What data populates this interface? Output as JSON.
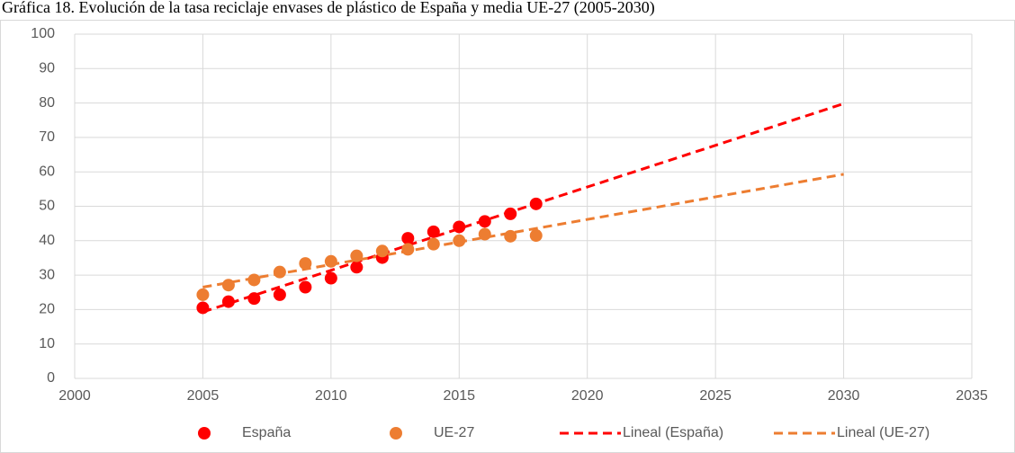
{
  "chart_data": {
    "type": "scatter",
    "title": "Gráfica 18. Evolución de la tasa reciclaje envases de plástico de España y media UE-27 (2005-2030)",
    "xlim": [
      2000,
      2035
    ],
    "xticks": [
      2000,
      2005,
      2010,
      2015,
      2020,
      2025,
      2030,
      2035
    ],
    "ylim": [
      0,
      100
    ],
    "yticks": [
      0,
      10,
      20,
      30,
      40,
      50,
      60,
      70,
      80,
      90,
      100
    ],
    "grid": true,
    "legend": "bottom",
    "series": [
      {
        "name": "España",
        "color": "#ff0000",
        "style": "marker",
        "x": [
          2005,
          2006,
          2007,
          2008,
          2009,
          2010,
          2011,
          2012,
          2013,
          2014,
          2015,
          2016,
          2017,
          2018
        ],
        "values": [
          20.5,
          22.3,
          23.2,
          24.3,
          26.5,
          29.1,
          32.3,
          35.1,
          40.7,
          42.6,
          44,
          45.6,
          47.8,
          50.7
        ]
      },
      {
        "name": "UE-27",
        "color": "#ed7d31",
        "style": "marker",
        "x": [
          2005,
          2006,
          2007,
          2008,
          2009,
          2010,
          2011,
          2012,
          2013,
          2014,
          2015,
          2016,
          2017,
          2018
        ],
        "values": [
          24.3,
          27.1,
          28.6,
          30.9,
          33.4,
          34.0,
          35.6,
          37.0,
          37.5,
          39.0,
          40.0,
          41.9,
          41.3,
          41.5
        ]
      },
      {
        "name": "Lineal (España)",
        "color": "#ff0000",
        "style": "dashed",
        "x": [
          2005,
          2030
        ],
        "values": [
          19.3,
          79.8
        ]
      },
      {
        "name": "Lineal (UE-27)",
        "color": "#ed7d31",
        "style": "dashed",
        "x": [
          2005,
          2030
        ],
        "values": [
          26.5,
          59.3
        ]
      }
    ]
  }
}
